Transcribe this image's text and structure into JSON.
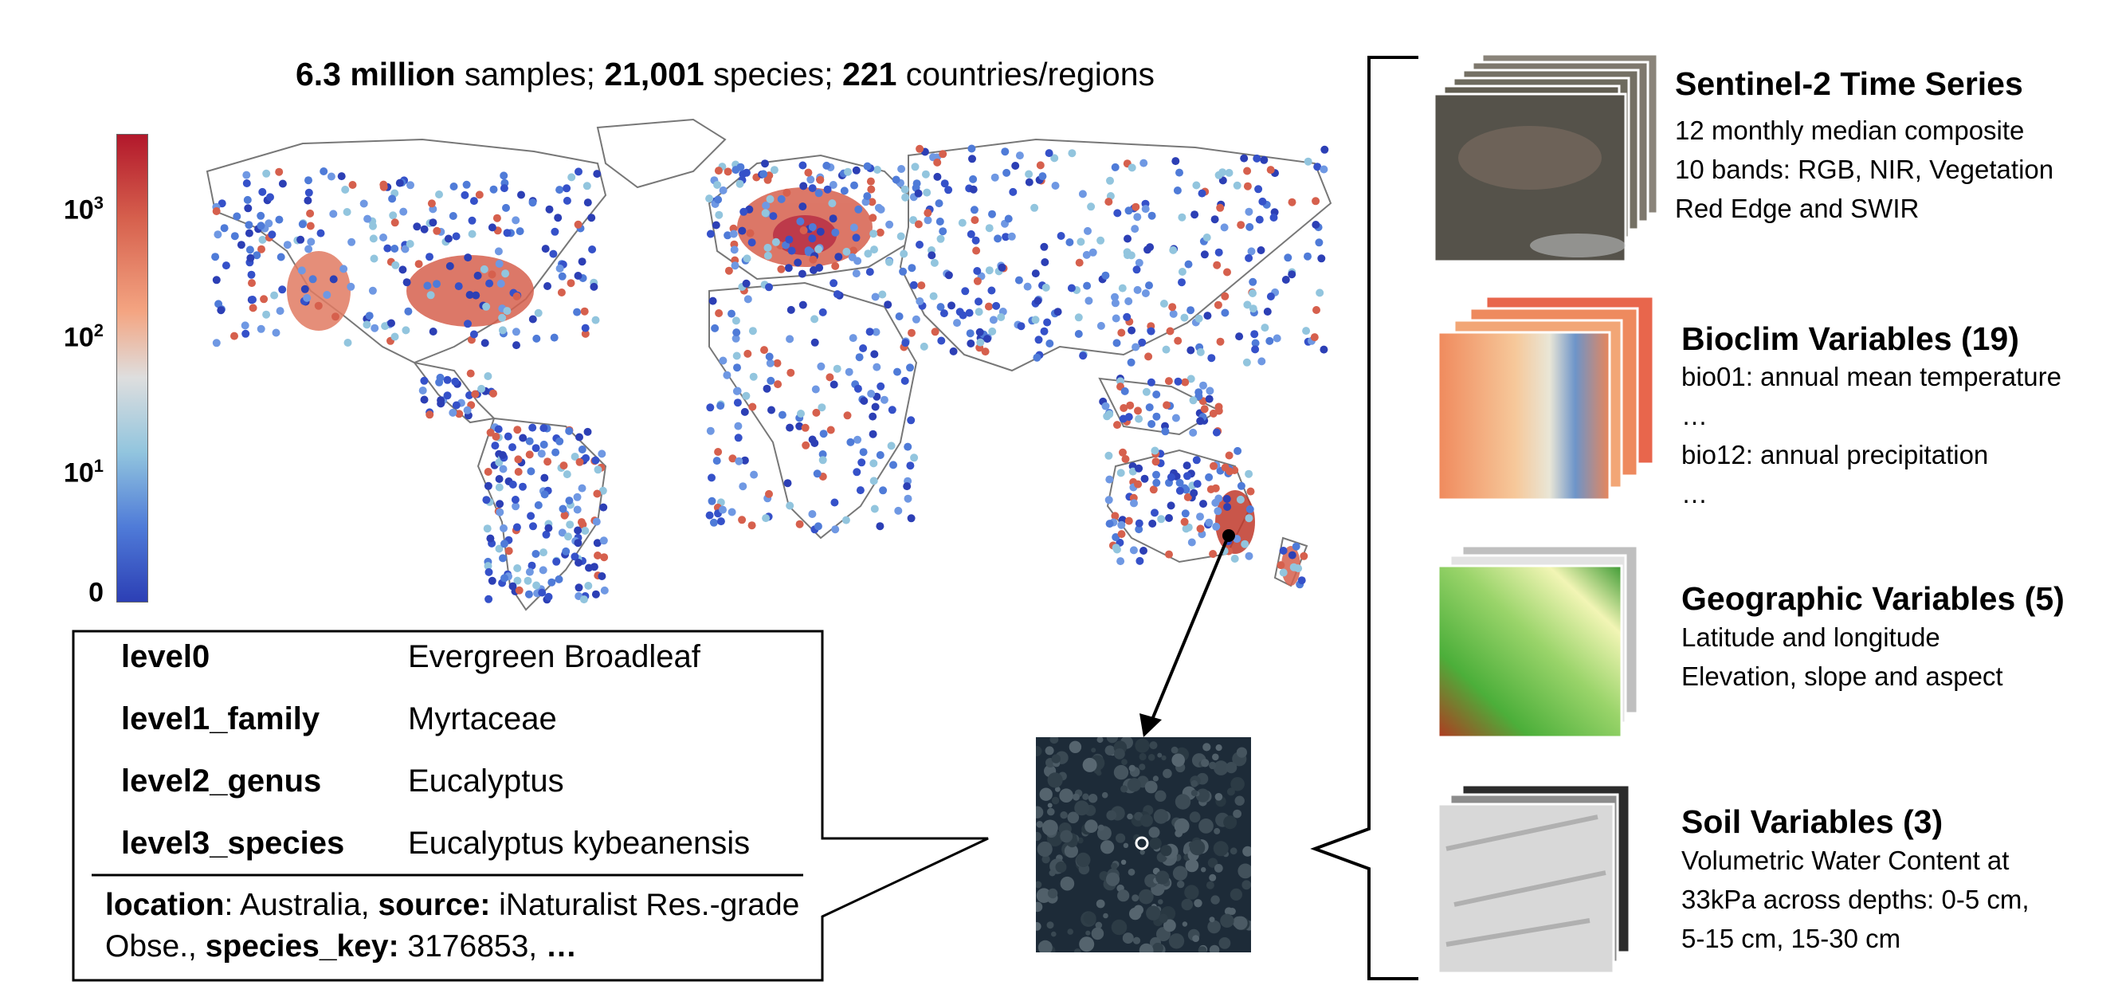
{
  "header": {
    "samples_count": "6.3 million",
    "samples_label": "samples;",
    "species_count": "21,001",
    "species_label": "species;",
    "countries_count": "221",
    "countries_label": "countries/regions"
  },
  "colorbar": {
    "ticks": [
      {
        "base": "10",
        "exp": "3"
      },
      {
        "base": "10",
        "exp": "2"
      },
      {
        "base": "10",
        "exp": "1"
      },
      {
        "base": "0",
        "exp": ""
      }
    ],
    "colors": {
      "high": "#b2182b",
      "mid": "#dedede",
      "low": "#2c3fb5"
    }
  },
  "sample_card": {
    "rows": [
      {
        "key": "level0",
        "value": "Evergreen Broadleaf"
      },
      {
        "key": "level1_family",
        "value": "Myrtaceae"
      },
      {
        "key": "level2_genus",
        "value": "Eucalyptus"
      },
      {
        "key": "level3_species",
        "value": "Eucalyptus kybeanensis"
      }
    ],
    "meta": {
      "location_key": "location",
      "location_value": ": Australia, ",
      "source_key": "source:",
      "source_value": " iNaturalist Res.-grade Obse., ",
      "species_key_key": "species_key:",
      "species_key_value": " 3176853, ",
      "ellipsis": "…"
    }
  },
  "layers": [
    {
      "title": "Sentinel-2 Time Series",
      "lines": [
        "12 monthly median composite",
        "10 bands: RGB, NIR, Vegetation",
        "Red Edge and SWIR"
      ]
    },
    {
      "title": "Bioclim Variables (19)",
      "lines": [
        "bio01: annual mean temperature",
        "…",
        "bio12: annual precipitation",
        "…"
      ]
    },
    {
      "title": "Geographic Variables (5)",
      "lines": [
        "Latitude and longitude",
        "Elevation, slope and aspect"
      ]
    },
    {
      "title": "Soil Variables (3)",
      "lines": [
        "Volumetric Water Content at",
        "33kPa across depths: 0-5 cm,",
        "5-15 cm, 15-30 cm"
      ]
    }
  ],
  "icons": {
    "map": "world-map-icon",
    "satellite": "satellite-tile-icon",
    "brace": "curly-brace-icon"
  }
}
